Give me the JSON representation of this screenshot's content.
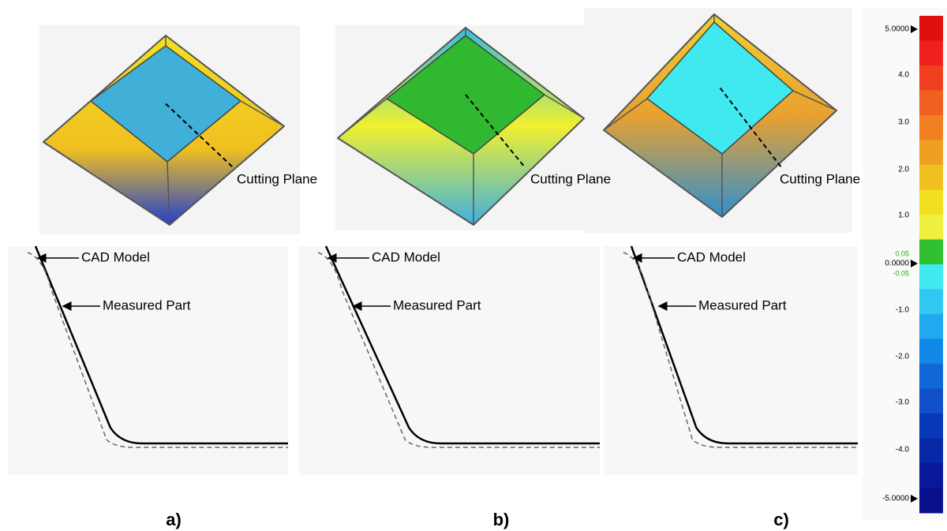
{
  "panels": [
    {
      "label": "a)",
      "cutting_plane": "Cutting Plane",
      "cad_model": "CAD Model",
      "measured_part": "Measured Part"
    },
    {
      "label": "b)",
      "cutting_plane": "Cutting Plane",
      "cad_model": "CAD Model",
      "measured_part": "Measured Part"
    },
    {
      "label": "c)",
      "cutting_plane": "Cutting Plane",
      "cad_model": "CAD Model",
      "measured_part": "Measured Part"
    }
  ],
  "colorbar": {
    "labels": [
      "5.0000",
      "4.0",
      "3.0",
      "2.0",
      "1.0",
      "0.05",
      "0.0000",
      "-0.05",
      "-1.0",
      "-2.0",
      "-3.0",
      "-4.0",
      "-5.0000"
    ]
  }
}
